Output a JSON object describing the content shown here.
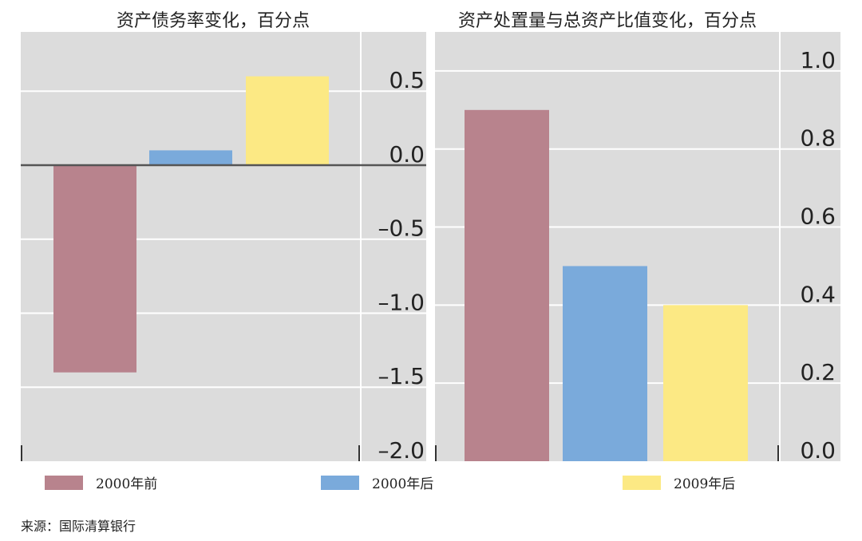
{
  "chart_data": [
    {
      "type": "bar",
      "title": "资产债务率变化，百分点",
      "categories": [
        "2000年前",
        "2000年后",
        "2009年后"
      ],
      "values": [
        -1.4,
        0.1,
        0.6
      ],
      "ylim": [
        -2.0,
        0.9
      ],
      "yticks": [
        0.5,
        0.0,
        -0.5,
        -1.0,
        -1.5,
        -2.0
      ],
      "ytick_labels": [
        "0.5",
        "0.0",
        "–0.5",
        "–1.0",
        "–1.5",
        "–2.0"
      ],
      "grid": true
    },
    {
      "type": "bar",
      "title": "资产处置量与总资产比值变化，百分点",
      "categories": [
        "2000年前",
        "2000年后",
        "2009年后"
      ],
      "values": [
        0.9,
        0.5,
        0.4
      ],
      "ylim": [
        0.0,
        1.1
      ],
      "yticks": [
        1.0,
        0.8,
        0.6,
        0.4,
        0.2,
        0.0
      ],
      "ytick_labels": [
        "1.0",
        "0.8",
        "0.6",
        "0.4",
        "0.2",
        "0.0"
      ],
      "grid": true
    }
  ],
  "colors": {
    "series": [
      "#b8838d",
      "#7aaadb",
      "#fce984"
    ],
    "plot_bg": "#dcdcdc",
    "grid": "#ffffff",
    "zero_line": "#555555"
  },
  "legend": [
    {
      "label": "2000年前"
    },
    {
      "label": "2000年后"
    },
    {
      "label": "2009年后"
    }
  ],
  "source": "来源：国际清算银行"
}
